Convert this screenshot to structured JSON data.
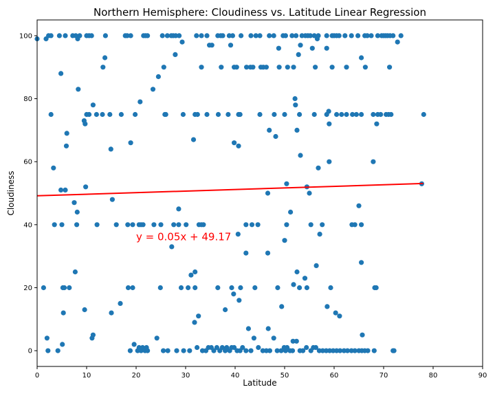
{
  "chart_data": {
    "type": "scatter",
    "title": "Northern Hemisphere: Cloudiness vs. Latitude Linear Regression",
    "xlabel": "Latitude",
    "ylabel": "Cloudiness",
    "xlim": [
      0,
      90
    ],
    "ylim": [
      -5,
      105
    ],
    "xticks": [
      0,
      10,
      20,
      30,
      40,
      50,
      60,
      70,
      80,
      90
    ],
    "yticks": [
      0,
      20,
      40,
      60,
      80,
      100
    ],
    "grid": false,
    "legend": "none",
    "point_color": "#1f77b4",
    "line_color": "#ff0000",
    "regression": {
      "slope": 0.05,
      "intercept": 49.17,
      "x_start": 0,
      "x_end": 78
    },
    "annotation": {
      "text": "y = 0.05x + 49.17",
      "x": 20,
      "y": 35,
      "color": "#ff0000"
    },
    "points": [
      [
        0,
        99
      ],
      [
        1.8,
        99
      ],
      [
        2.3,
        100
      ],
      [
        2.8,
        100
      ],
      [
        4.5,
        100
      ],
      [
        5.7,
        100
      ],
      [
        7.2,
        100
      ],
      [
        7.8,
        100
      ],
      [
        8.2,
        99
      ],
      [
        8.6,
        100
      ],
      [
        10,
        100
      ],
      [
        10.5,
        100
      ],
      [
        11,
        100
      ],
      [
        13.8,
        100
      ],
      [
        17.8,
        100
      ],
      [
        18.2,
        100
      ],
      [
        18.9,
        100
      ],
      [
        21.5,
        100
      ],
      [
        21.9,
        100
      ],
      [
        22.3,
        100
      ],
      [
        25.3,
        100
      ],
      [
        26.3,
        100
      ],
      [
        27.1,
        100
      ],
      [
        27.5,
        100
      ],
      [
        28,
        100
      ],
      [
        28.7,
        100
      ],
      [
        29.3,
        98
      ],
      [
        32.2,
        100
      ],
      [
        33.2,
        100
      ],
      [
        34.3,
        100
      ],
      [
        34.8,
        97
      ],
      [
        35.3,
        97
      ],
      [
        36.5,
        100
      ],
      [
        37.1,
        100
      ],
      [
        37.5,
        100
      ],
      [
        38.8,
        100
      ],
      [
        39.1,
        97
      ],
      [
        39.5,
        100
      ],
      [
        41.2,
        100
      ],
      [
        43.2,
        100
      ],
      [
        44.2,
        100
      ],
      [
        45,
        100
      ],
      [
        46.9,
        100
      ],
      [
        47.8,
        100
      ],
      [
        48.8,
        96
      ],
      [
        49.7,
        100
      ],
      [
        50.2,
        100
      ],
      [
        51.5,
        100
      ],
      [
        52.3,
        100
      ],
      [
        52.8,
        94
      ],
      [
        53.5,
        100
      ],
      [
        54.2,
        100
      ],
      [
        54.7,
        100
      ],
      [
        55.2,
        100
      ],
      [
        55.6,
        96
      ],
      [
        56,
        100
      ],
      [
        56.6,
        99
      ],
      [
        56.8,
        100
      ],
      [
        58.5,
        100
      ],
      [
        59.6,
        100
      ],
      [
        60,
        100
      ],
      [
        60.5,
        100
      ],
      [
        61,
        100
      ],
      [
        62.2,
        100
      ],
      [
        63.5,
        100
      ],
      [
        64.8,
        100
      ],
      [
        65.5,
        93
      ],
      [
        66.2,
        100
      ],
      [
        66.7,
        100
      ],
      [
        67.5,
        100
      ],
      [
        68.8,
        100
      ],
      [
        69.6,
        100
      ],
      [
        70,
        100
      ],
      [
        70.4,
        100
      ],
      [
        70.8,
        100
      ],
      [
        71.3,
        100
      ],
      [
        71.9,
        100
      ],
      [
        72.8,
        98
      ],
      [
        73.5,
        100
      ],
      [
        4.8,
        88
      ],
      [
        13.3,
        90
      ],
      [
        13.7,
        93
      ],
      [
        25.6,
        90
      ],
      [
        27.9,
        94
      ],
      [
        33.2,
        90
      ],
      [
        37.2,
        90
      ],
      [
        39.8,
        90
      ],
      [
        40.3,
        90
      ],
      [
        42.3,
        90
      ],
      [
        43.1,
        90
      ],
      [
        43.6,
        90
      ],
      [
        45.2,
        90
      ],
      [
        45.7,
        90
      ],
      [
        46.3,
        90
      ],
      [
        48.9,
        90
      ],
      [
        50.6,
        90
      ],
      [
        51.8,
        90
      ],
      [
        53.2,
        97
      ],
      [
        56.2,
        90
      ],
      [
        58.5,
        96
      ],
      [
        59.6,
        90
      ],
      [
        62.5,
        90
      ],
      [
        66.3,
        90
      ],
      [
        71.2,
        90
      ],
      [
        8.3,
        83
      ],
      [
        11.3,
        78
      ],
      [
        20.8,
        79
      ],
      [
        23.4,
        83
      ],
      [
        24.5,
        87
      ],
      [
        52.1,
        80
      ],
      [
        52.2,
        78
      ],
      [
        2.8,
        75
      ],
      [
        9.5,
        73
      ],
      [
        9.7,
        72
      ],
      [
        10,
        75
      ],
      [
        10.5,
        75
      ],
      [
        12,
        75
      ],
      [
        13.2,
        75
      ],
      [
        14.7,
        75
      ],
      [
        17,
        75
      ],
      [
        19.8,
        75
      ],
      [
        25.8,
        75
      ],
      [
        26,
        75
      ],
      [
        29.5,
        75
      ],
      [
        31.9,
        75
      ],
      [
        32.4,
        75
      ],
      [
        34.3,
        75
      ],
      [
        36.6,
        75
      ],
      [
        38.6,
        75
      ],
      [
        40.7,
        75
      ],
      [
        41,
        75
      ],
      [
        45,
        75
      ],
      [
        47.9,
        75
      ],
      [
        50,
        75
      ],
      [
        53,
        75
      ],
      [
        56,
        75
      ],
      [
        58.5,
        75
      ],
      [
        58.9,
        76
      ],
      [
        59,
        72
      ],
      [
        60.5,
        75
      ],
      [
        61.5,
        75
      ],
      [
        62.5,
        75
      ],
      [
        63.7,
        75
      ],
      [
        64.5,
        75
      ],
      [
        65.5,
        75
      ],
      [
        67.9,
        75
      ],
      [
        68.6,
        72
      ],
      [
        68.8,
        75
      ],
      [
        69.4,
        75
      ],
      [
        70.5,
        75
      ],
      [
        71,
        75
      ],
      [
        71.5,
        75
      ],
      [
        78.1,
        75
      ],
      [
        46.9,
        70
      ],
      [
        48.2,
        68
      ],
      [
        52.5,
        70
      ],
      [
        3.3,
        58
      ],
      [
        6,
        69
      ],
      [
        5.9,
        65
      ],
      [
        14.9,
        64
      ],
      [
        18.9,
        66
      ],
      [
        31.6,
        67
      ],
      [
        39.8,
        66
      ],
      [
        40.7,
        65
      ],
      [
        53.2,
        62
      ],
      [
        56.8,
        58
      ],
      [
        59,
        60
      ],
      [
        67.9,
        60
      ],
      [
        54.5,
        52
      ],
      [
        50.4,
        53
      ],
      [
        77.7,
        53
      ],
      [
        9.8,
        52
      ],
      [
        4.8,
        51
      ],
      [
        5.7,
        51
      ],
      [
        15.2,
        48
      ],
      [
        7.5,
        47
      ],
      [
        8.1,
        44
      ],
      [
        28.6,
        45
      ],
      [
        46.6,
        50
      ],
      [
        51.2,
        44
      ],
      [
        55,
        50
      ],
      [
        65,
        46
      ],
      [
        3.5,
        40
      ],
      [
        5,
        40
      ],
      [
        8,
        40
      ],
      [
        12.1,
        40
      ],
      [
        16,
        40
      ],
      [
        18.3,
        40
      ],
      [
        19.3,
        40
      ],
      [
        20.6,
        40
      ],
      [
        21,
        40
      ],
      [
        21.4,
        40
      ],
      [
        23.6,
        40
      ],
      [
        25,
        40
      ],
      [
        27.6,
        40
      ],
      [
        28.6,
        40
      ],
      [
        30.1,
        40
      ],
      [
        32.7,
        40
      ],
      [
        33.2,
        40
      ],
      [
        33.6,
        40
      ],
      [
        40.6,
        37
      ],
      [
        42.2,
        40
      ],
      [
        43.4,
        40
      ],
      [
        44.6,
        40
      ],
      [
        50,
        35
      ],
      [
        50.4,
        40
      ],
      [
        55.3,
        40
      ],
      [
        57.1,
        37
      ],
      [
        57.6,
        40
      ],
      [
        63.6,
        40
      ],
      [
        64.2,
        40
      ],
      [
        65.5,
        40
      ],
      [
        27.2,
        33
      ],
      [
        29.1,
        20
      ],
      [
        30.5,
        20
      ],
      [
        31.1,
        24
      ],
      [
        31.9,
        25
      ],
      [
        32.6,
        11
      ],
      [
        31.8,
        9
      ],
      [
        36.5,
        20
      ],
      [
        38,
        13
      ],
      [
        39.3,
        20
      ],
      [
        39.7,
        18
      ],
      [
        40.8,
        16
      ],
      [
        41.1,
        20
      ],
      [
        42.2,
        31
      ],
      [
        42.7,
        7
      ],
      [
        44,
        20
      ],
      [
        46.6,
        31
      ],
      [
        46.7,
        7
      ],
      [
        48.6,
        20
      ],
      [
        49.4,
        14
      ],
      [
        51.7,
        3
      ],
      [
        51.8,
        21
      ],
      [
        52.5,
        25
      ],
      [
        53,
        20
      ],
      [
        54.1,
        23
      ],
      [
        54.5,
        20
      ],
      [
        56.4,
        27
      ],
      [
        58.6,
        14
      ],
      [
        59.3,
        20
      ],
      [
        60.3,
        12
      ],
      [
        61.1,
        11
      ],
      [
        65.5,
        28
      ],
      [
        65.7,
        5
      ],
      [
        68.2,
        20
      ],
      [
        68.5,
        20
      ],
      [
        31.9,
        20
      ],
      [
        1.3,
        20
      ],
      [
        7.7,
        25
      ],
      [
        5.2,
        20
      ],
      [
        5.5,
        20
      ],
      [
        6.5,
        20
      ],
      [
        5.3,
        12
      ],
      [
        5.1,
        2
      ],
      [
        9.6,
        13
      ],
      [
        11.3,
        5
      ],
      [
        11.1,
        4
      ],
      [
        15,
        12
      ],
      [
        16.8,
        15
      ],
      [
        18.4,
        20
      ],
      [
        19.3,
        20
      ],
      [
        19.6,
        2
      ],
      [
        24.2,
        4
      ],
      [
        24.9,
        20
      ],
      [
        2,
        4
      ],
      [
        2.2,
        0
      ],
      [
        4.2,
        0
      ],
      [
        18.8,
        0
      ],
      [
        20.3,
        0
      ],
      [
        20.6,
        1
      ],
      [
        21,
        0
      ],
      [
        21.3,
        1
      ],
      [
        21.8,
        0
      ],
      [
        22.3,
        0
      ],
      [
        22.1,
        1
      ],
      [
        25.5,
        0
      ],
      [
        26.4,
        0
      ],
      [
        28.2,
        0
      ],
      [
        29.6,
        0
      ],
      [
        30.8,
        0
      ],
      [
        32.3,
        1
      ],
      [
        33.4,
        0
      ],
      [
        34.1,
        0
      ],
      [
        34.6,
        1
      ],
      [
        35.2,
        1
      ],
      [
        35.7,
        0
      ],
      [
        36.3,
        1
      ],
      [
        36.9,
        0
      ],
      [
        37.4,
        1
      ],
      [
        38,
        0
      ],
      [
        38.3,
        1
      ],
      [
        38.9,
        0
      ],
      [
        39.3,
        1
      ],
      [
        39.8,
        1
      ],
      [
        40.4,
        0
      ],
      [
        41,
        0
      ],
      [
        41.5,
        1
      ],
      [
        42.2,
        0
      ],
      [
        43.2,
        0
      ],
      [
        43.8,
        4
      ],
      [
        44.7,
        1
      ],
      [
        45.6,
        0
      ],
      [
        46.3,
        0
      ],
      [
        47,
        0
      ],
      [
        47.8,
        4
      ],
      [
        48.5,
        0
      ],
      [
        49.3,
        0
      ],
      [
        49.9,
        1
      ],
      [
        50.2,
        0
      ],
      [
        50.5,
        1
      ],
      [
        51.1,
        0
      ],
      [
        51.6,
        0
      ],
      [
        52.4,
        3
      ],
      [
        53.1,
        0
      ],
      [
        53.7,
        0
      ],
      [
        54.4,
        1
      ],
      [
        55.3,
        0
      ],
      [
        55.8,
        1
      ],
      [
        56.3,
        1
      ],
      [
        57,
        0
      ],
      [
        57.7,
        0
      ],
      [
        58.4,
        0
      ],
      [
        59.1,
        0
      ],
      [
        59.8,
        0
      ],
      [
        60.5,
        0
      ],
      [
        61.2,
        0
      ],
      [
        62,
        0
      ],
      [
        62.7,
        0
      ],
      [
        63.5,
        0
      ],
      [
        64.2,
        0
      ],
      [
        65,
        0
      ],
      [
        65.6,
        0
      ],
      [
        66.2,
        0
      ],
      [
        66.8,
        0
      ],
      [
        68.1,
        0
      ],
      [
        71.9,
        0
      ],
      [
        72.1,
        0
      ]
    ]
  }
}
